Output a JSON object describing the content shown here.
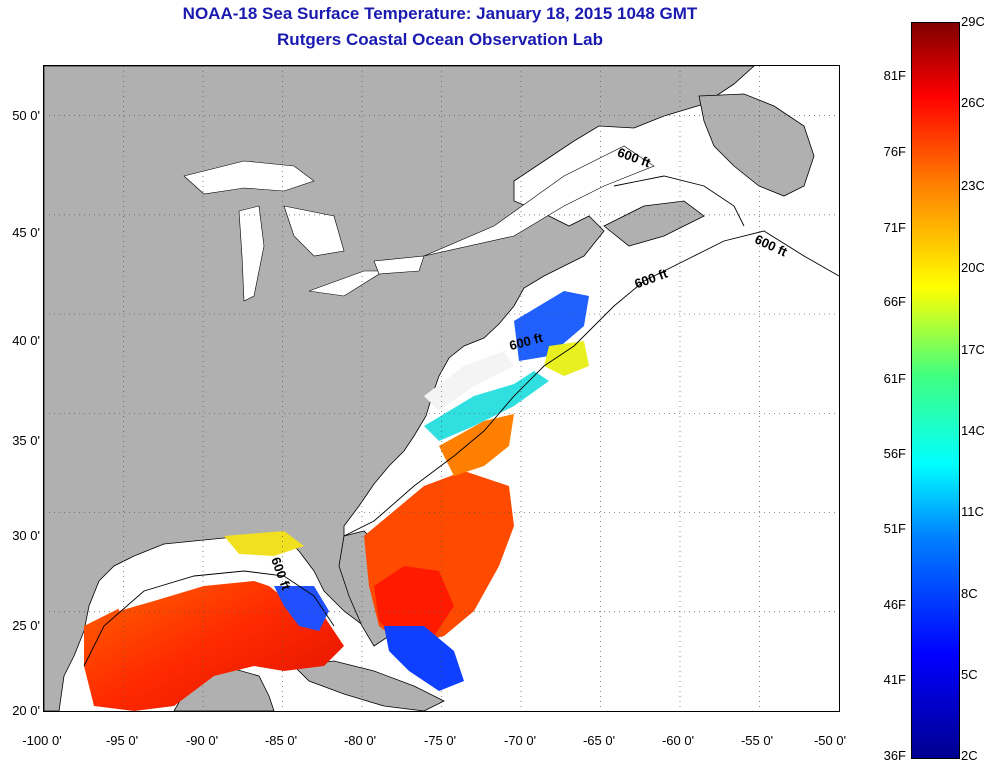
{
  "title": "NOAA-18 Sea Surface Temperature:  January 18, 2015 1048 GMT",
  "subtitle": "Rutgers Coastal Ocean Observation Lab",
  "map": {
    "lon_range": [
      -100,
      -50
    ],
    "lat_range": [
      20,
      52.5
    ],
    "lat_ticks": [
      "50 0'",
      "45 0'",
      "40 0'",
      "35 0'",
      "30 0'",
      "25 0'",
      "20 0'"
    ],
    "lon_ticks": [
      "-100 0'",
      "-95 0'",
      "-90 0'",
      "-85 0'",
      "-80 0'",
      "-75 0'",
      "-70 0'",
      "-65 0'",
      "-60 0'",
      "-55 0'",
      "-50 0'"
    ],
    "grid": "dotted",
    "land_color": "#b0b0b0",
    "no_data_color": "#ffffff",
    "isobath_labels": [
      "600 ft",
      "600 ft",
      "600 ft",
      "600 ft",
      "600 ft"
    ]
  },
  "colorbar": {
    "fahrenheit_labels": [
      "81F",
      "76F",
      "71F",
      "66F",
      "61F",
      "56F",
      "51F",
      "46F",
      "41F",
      "36F"
    ],
    "celsius_labels": [
      "29C",
      "26C",
      "23C",
      "20C",
      "17C",
      "14C",
      "11C",
      "8C",
      "5C",
      "2C"
    ],
    "range_c": [
      2,
      29
    ]
  }
}
